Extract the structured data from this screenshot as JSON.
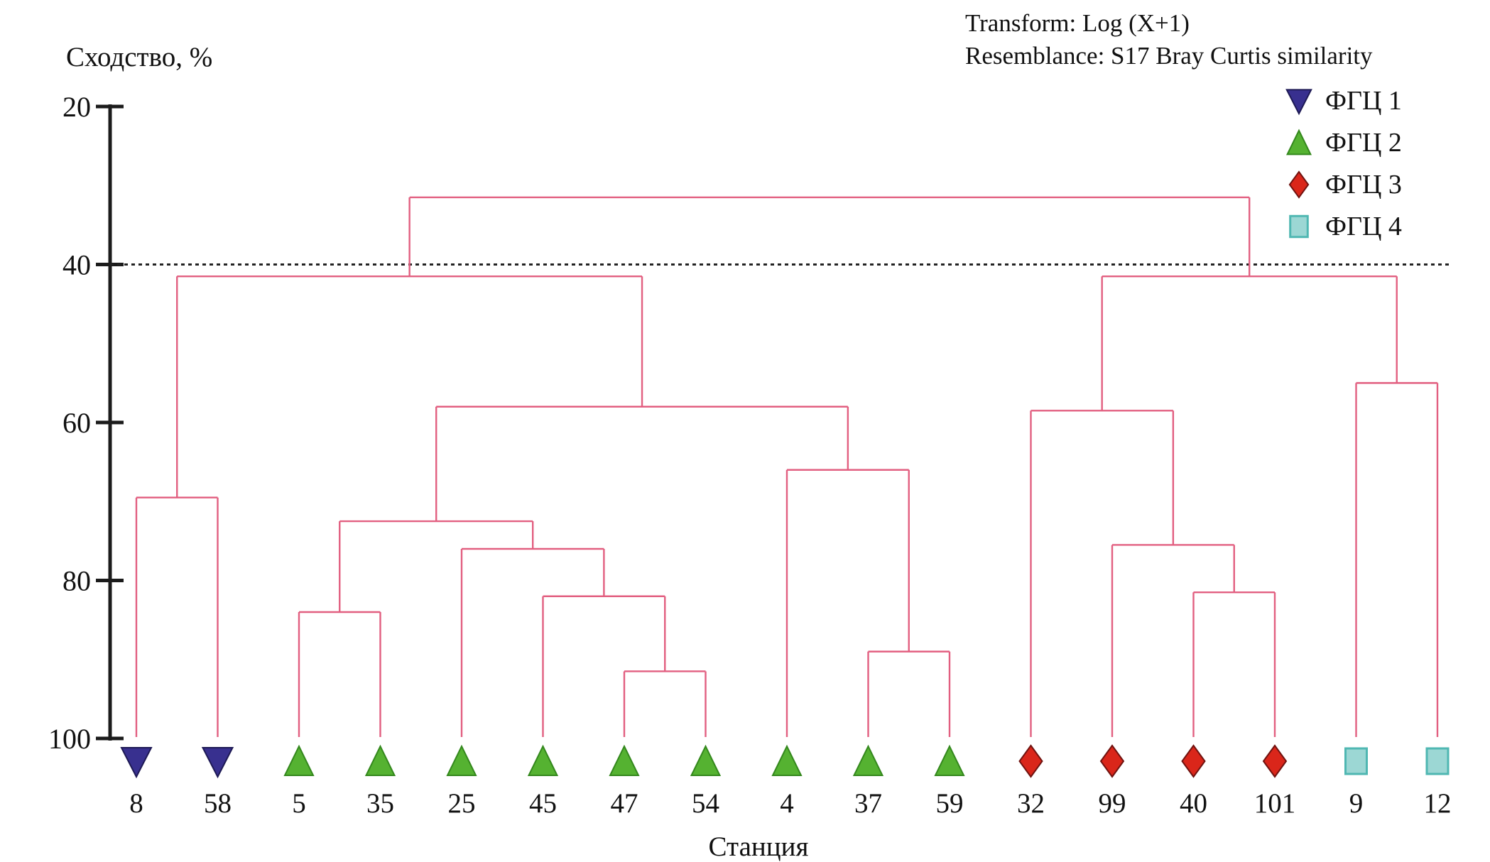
{
  "header": {
    "transform_line": "Transform: Log (X+1)",
    "resemblance_line": "Resemblance: S17 Bray Curtis similarity"
  },
  "axes": {
    "y_label": "Сходство, %",
    "x_label": "Станция"
  },
  "legend": {
    "items": [
      {
        "label": "ФГЦ 1",
        "marker": "triangle-down",
        "color": "#38308f",
        "border": "#1e1a55"
      },
      {
        "label": "ФГЦ 2",
        "marker": "triangle-up",
        "color": "#55b231",
        "border": "#34881d"
      },
      {
        "label": "ФГЦ 3",
        "marker": "diamond",
        "color": "#da261a",
        "border": "#701310"
      },
      {
        "label": "ФГЦ 4",
        "marker": "square",
        "color": "#9cd7d4",
        "border": "#4fb7b2"
      }
    ]
  },
  "chart_data": {
    "type": "dendrogram",
    "orientation": "top-down",
    "title": "",
    "ylabel": "Сходство, %",
    "xlabel": "Станция",
    "ylim": [
      20,
      100
    ],
    "yticks": [
      20,
      40,
      60,
      80,
      100
    ],
    "threshold_similarity": 40,
    "line_color": "#e25f80",
    "axis_color": "#1b1b1b",
    "leaves": [
      {
        "label": "8",
        "group": 0
      },
      {
        "label": "58",
        "group": 0
      },
      {
        "label": "5",
        "group": 1
      },
      {
        "label": "35",
        "group": 1
      },
      {
        "label": "25",
        "group": 1
      },
      {
        "label": "45",
        "group": 1
      },
      {
        "label": "47",
        "group": 1
      },
      {
        "label": "54",
        "group": 1
      },
      {
        "label": "4",
        "group": 1
      },
      {
        "label": "37",
        "group": 1
      },
      {
        "label": "59",
        "group": 1
      },
      {
        "label": "32",
        "group": 2
      },
      {
        "label": "99",
        "group": 2
      },
      {
        "label": "40",
        "group": 2
      },
      {
        "label": "101",
        "group": 2
      },
      {
        "label": "9",
        "group": 3
      },
      {
        "label": "12",
        "group": 3
      }
    ],
    "merges": {
      "similarity": 31.5,
      "children": [
        {
          "similarity": 41.5,
          "children": [
            {
              "similarity": 69.5,
              "children": [
                {
                  "leaf": "8"
                },
                {
                  "leaf": "58"
                }
              ]
            },
            {
              "similarity": 58,
              "children": [
                {
                  "similarity": 72.5,
                  "children": [
                    {
                      "similarity": 84,
                      "children": [
                        {
                          "leaf": "5"
                        },
                        {
                          "leaf": "35"
                        }
                      ]
                    },
                    {
                      "similarity": 76,
                      "children": [
                        {
                          "leaf": "25"
                        },
                        {
                          "similarity": 82,
                          "children": [
                            {
                              "leaf": "45"
                            },
                            {
                              "similarity": 91.5,
                              "children": [
                                {
                                  "leaf": "47"
                                },
                                {
                                  "leaf": "54"
                                }
                              ]
                            }
                          ]
                        }
                      ]
                    }
                  ]
                },
                {
                  "similarity": 66,
                  "children": [
                    {
                      "leaf": "4"
                    },
                    {
                      "similarity": 89,
                      "children": [
                        {
                          "leaf": "37"
                        },
                        {
                          "leaf": "59"
                        }
                      ]
                    }
                  ]
                }
              ]
            }
          ]
        },
        {
          "similarity": 41.5,
          "children": [
            {
              "similarity": 58.5,
              "children": [
                {
                  "leaf": "32"
                },
                {
                  "similarity": 75.5,
                  "children": [
                    {
                      "leaf": "99"
                    },
                    {
                      "similarity": 81.5,
                      "children": [
                        {
                          "leaf": "40"
                        },
                        {
                          "leaf": "101"
                        }
                      ]
                    }
                  ]
                }
              ]
            },
            {
              "similarity": 55,
              "children": [
                {
                  "leaf": "9"
                },
                {
                  "leaf": "12"
                }
              ]
            }
          ]
        }
      ]
    }
  }
}
